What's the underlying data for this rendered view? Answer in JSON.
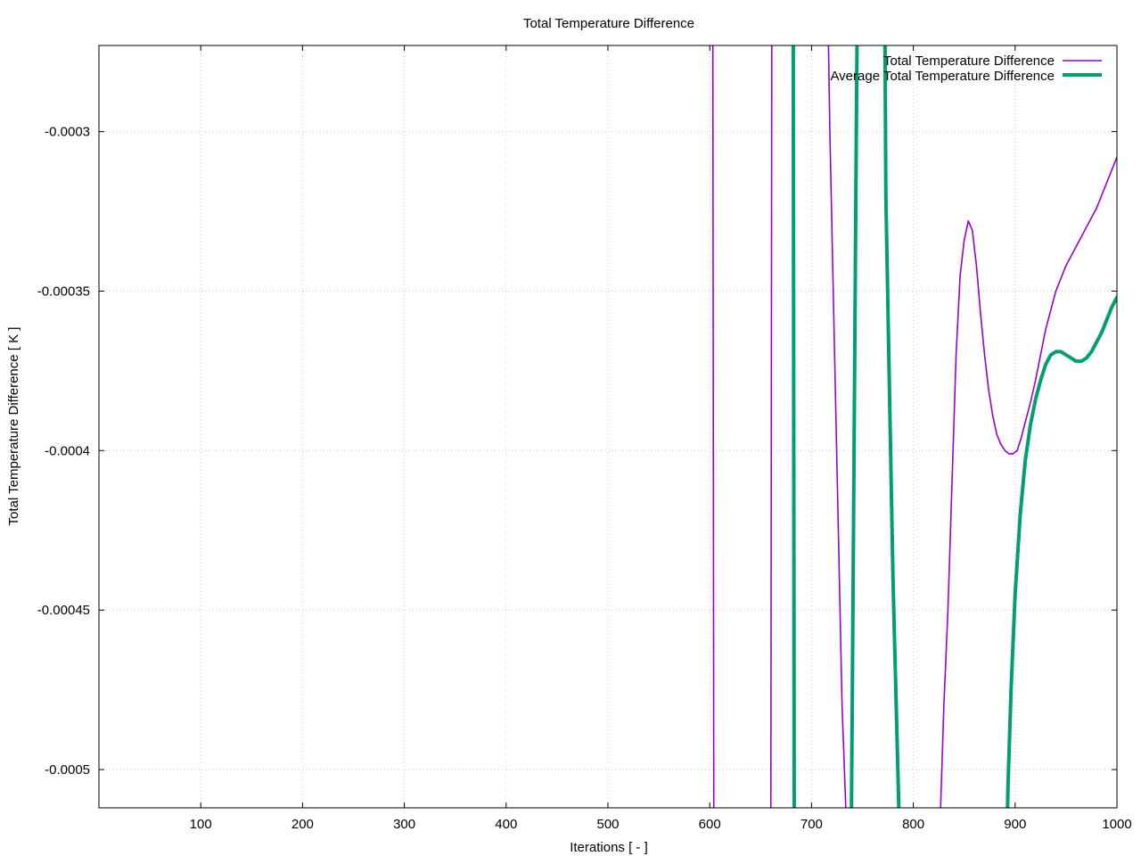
{
  "chart_data": {
    "type": "line",
    "title": "Total Temperature Difference",
    "xlabel": "Iterations [ - ]",
    "ylabel": "Total Temperature Difference [ K ]",
    "xlim": [
      0,
      1000
    ],
    "ylim": [
      -0.000512,
      -0.000273
    ],
    "xticks": [
      100,
      200,
      300,
      400,
      500,
      600,
      700,
      800,
      900,
      1000
    ],
    "xtick_labels": [
      "100",
      "200",
      "300",
      "400",
      "500",
      "600",
      "700",
      "800",
      "900",
      "1000"
    ],
    "yticks": [
      -0.0003,
      -0.00035,
      -0.0004,
      -0.00045,
      -0.0005
    ],
    "ytick_labels": [
      "-0.0003",
      "-0.00035",
      "-0.0004",
      "-0.00045",
      "-0.0005"
    ],
    "grid": true,
    "legend_position": "top-right",
    "series": [
      {
        "name": "Total Temperature Difference",
        "color": "#9400d3",
        "line_width": "thin",
        "x": [
          600,
          603,
          604,
          660,
          661,
          716,
          718,
          722,
          726,
          730,
          734,
          735,
          826,
          827,
          830,
          834,
          838,
          842,
          846,
          850,
          854,
          858,
          862,
          866,
          870,
          874,
          878,
          882,
          886,
          890,
          894,
          898,
          902,
          906,
          910,
          915,
          920,
          925,
          930,
          935,
          940,
          945,
          950,
          955,
          960,
          965,
          970,
          975,
          980,
          985,
          990,
          995,
          1000
        ],
        "y": [
          -0.00026,
          -0.00026,
          -0.00052,
          -0.00052,
          -0.00026,
          -0.00026,
          -0.0003,
          -0.00036,
          -0.00042,
          -0.00048,
          -0.000515,
          -0.00052,
          -0.00052,
          -0.00051,
          -0.00048,
          -0.00045,
          -0.00041,
          -0.00037,
          -0.000345,
          -0.000334,
          -0.000328,
          -0.000331,
          -0.000342,
          -0.000357,
          -0.00037,
          -0.000381,
          -0.000389,
          -0.000395,
          -0.000398,
          -0.0004,
          -0.000401,
          -0.000401,
          -0.0004,
          -0.000396,
          -0.000391,
          -0.000385,
          -0.000378,
          -0.00037,
          -0.000362,
          -0.000356,
          -0.00035,
          -0.000346,
          -0.000342,
          -0.000339,
          -0.000336,
          -0.000333,
          -0.00033,
          -0.000327,
          -0.000324,
          -0.00032,
          -0.000316,
          -0.000312,
          -0.000308
        ]
      },
      {
        "name": "Average Total Temperature Difference",
        "color": "#009e73",
        "line_width": "thick",
        "x": [
          680,
          682,
          683,
          739,
          740,
          744,
          745,
          772,
          773,
          780,
          786,
          787,
          892,
          893,
          896,
          900,
          905,
          910,
          915,
          920,
          925,
          930,
          935,
          940,
          945,
          950,
          955,
          960,
          965,
          970,
          975,
          980,
          985,
          990,
          995,
          1000
        ],
        "y": [
          -0.00026,
          -0.00026,
          -0.00052,
          -0.00052,
          -0.00048,
          -0.0003,
          -0.00026,
          -0.00026,
          -0.00032,
          -0.00044,
          -0.000515,
          -0.00052,
          -0.00052,
          -0.000505,
          -0.000475,
          -0.000445,
          -0.00042,
          -0.000403,
          -0.000392,
          -0.000384,
          -0.000378,
          -0.000373,
          -0.00037,
          -0.000369,
          -0.000369,
          -0.00037,
          -0.000371,
          -0.000372,
          -0.000372,
          -0.000371,
          -0.000369,
          -0.000366,
          -0.000363,
          -0.000359,
          -0.000355,
          -0.000352
        ]
      }
    ]
  }
}
